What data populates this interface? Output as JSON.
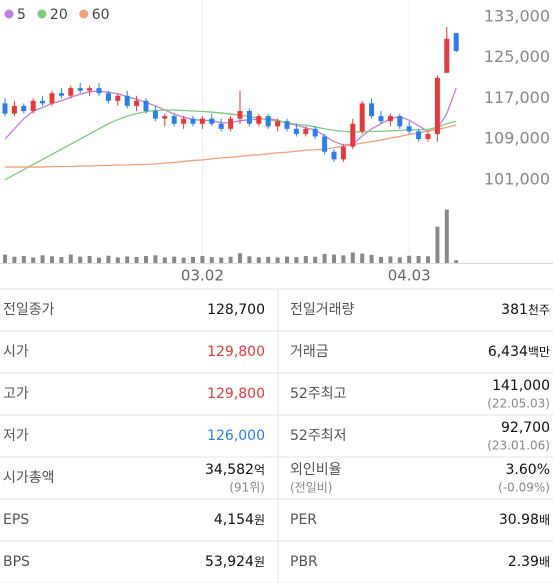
{
  "chart_data": {
    "type": "candlestick",
    "categories": [
      null,
      null,
      null,
      null,
      null,
      null,
      null,
      null,
      null,
      null,
      null,
      null,
      null,
      null,
      null,
      null,
      null,
      null,
      null,
      null,
      null,
      "03.02",
      null,
      null,
      null,
      null,
      null,
      null,
      null,
      null,
      null,
      null,
      null,
      null,
      null,
      null,
      null,
      null,
      null,
      null,
      null,
      null,
      null,
      "04.03",
      null,
      null,
      null,
      null,
      null
    ],
    "open": [
      116000,
      114000,
      115500,
      114500,
      116500,
      116000,
      118000,
      117500,
      119000,
      118500,
      119000,
      118000,
      116500,
      117500,
      115500,
      116500,
      114500,
      113000,
      113500,
      112000,
      113000,
      112000,
      113000,
      112000,
      111000,
      113000,
      114500,
      112000,
      113500,
      111500,
      112500,
      111000,
      110000,
      111000,
      109500,
      106500,
      105000,
      107500,
      110500,
      116000,
      113500,
      112500,
      113500,
      111500,
      110500,
      109000,
      110000,
      122000,
      129800
    ],
    "high": [
      117000,
      116500,
      116000,
      117000,
      117500,
      118500,
      119000,
      119500,
      120000,
      119500,
      120000,
      118500,
      118000,
      118500,
      117500,
      117000,
      115500,
      114000,
      114000,
      113500,
      113500,
      113500,
      114000,
      113000,
      113500,
      118500,
      115000,
      114000,
      114000,
      113000,
      113000,
      112000,
      111500,
      111500,
      110000,
      107000,
      108000,
      113000,
      116500,
      117000,
      114500,
      114000,
      114000,
      112500,
      111000,
      110500,
      121500,
      131000,
      129800
    ],
    "low": [
      113500,
      113500,
      114000,
      114000,
      115500,
      115500,
      117000,
      117000,
      118000,
      117500,
      117500,
      116000,
      115500,
      115000,
      114500,
      114000,
      112500,
      111500,
      111500,
      111000,
      111500,
      111000,
      111500,
      110500,
      110500,
      112000,
      111500,
      111500,
      111000,
      110500,
      110500,
      109500,
      109500,
      109000,
      106000,
      104500,
      104500,
      107000,
      110000,
      113000,
      112000,
      111500,
      111000,
      110000,
      108500,
      108500,
      108500,
      122000,
      126000
    ],
    "close": [
      114000,
      115500,
      114500,
      116500,
      116000,
      118000,
      117500,
      119000,
      118500,
      119000,
      118000,
      116500,
      117500,
      115500,
      116500,
      114500,
      113000,
      113500,
      112000,
      113000,
      112000,
      113000,
      112000,
      111000,
      113000,
      114500,
      112000,
      113500,
      111500,
      112500,
      111000,
      110000,
      111000,
      109500,
      106500,
      105000,
      107500,
      112000,
      116000,
      113500,
      112500,
      113500,
      111500,
      110500,
      109000,
      110000,
      121000,
      128700,
      126300
    ],
    "volume": [
      60000,
      45000,
      50000,
      40000,
      55000,
      48000,
      42000,
      60000,
      45000,
      50000,
      38000,
      52000,
      40000,
      47000,
      43000,
      50000,
      55000,
      40000,
      46000,
      38000,
      44000,
      50000,
      42000,
      39000,
      45000,
      70000,
      48000,
      41000,
      44000,
      40000,
      46000,
      42000,
      50000,
      45000,
      65000,
      60000,
      55000,
      75000,
      68000,
      58000,
      44000,
      47000,
      40000,
      52000,
      50000,
      48000,
      260000,
      381000,
      20000
    ],
    "up_color": "#e8383d",
    "down_color": "#2b7de9",
    "moving_averages": [
      {
        "name": "5",
        "color": "#c07ee0",
        "values": [
          109000,
          111000,
          113000,
          114500,
          115200,
          116000,
          116500,
          117200,
          117800,
          118300,
          118400,
          118200,
          117900,
          117300,
          116800,
          116200,
          115500,
          114700,
          113900,
          113300,
          112800,
          112700,
          112600,
          112200,
          112200,
          112600,
          112800,
          112900,
          113000,
          112700,
          112100,
          111700,
          111200,
          110800,
          109600,
          108500,
          107800,
          108000,
          109600,
          111000,
          112000,
          113000,
          113400,
          112700,
          111600,
          110500,
          111000,
          114000,
          119000
        ]
      },
      {
        "name": "20",
        "color": "#7ccc7c",
        "values": [
          101000,
          102000,
          103000,
          104000,
          105000,
          106000,
          107000,
          108000,
          109000,
          110000,
          111000,
          112000,
          112800,
          113500,
          114000,
          114400,
          114600,
          114700,
          114700,
          114600,
          114500,
          114400,
          114300,
          114100,
          113900,
          113700,
          113400,
          113100,
          112800,
          112500,
          112200,
          111900,
          111700,
          111400,
          111000,
          110700,
          110500,
          110400,
          110400,
          110500,
          110500,
          110600,
          110700,
          110800,
          110800,
          110900,
          111300,
          112000,
          112500
        ]
      },
      {
        "name": "60",
        "color": "#f2a07a",
        "values": [
          103500,
          103500,
          103500,
          103500,
          103500,
          103600,
          103600,
          103600,
          103700,
          103700,
          103800,
          103800,
          103900,
          103900,
          104000,
          104000,
          104100,
          104300,
          104400,
          104600,
          104800,
          104900,
          105100,
          105300,
          105400,
          105600,
          105800,
          105900,
          106100,
          106300,
          106400,
          106600,
          106800,
          106900,
          107000,
          107300,
          107600,
          107900,
          108200,
          108500,
          108800,
          109200,
          109500,
          109900,
          110200,
          110600,
          110900,
          111300,
          111800
        ]
      }
    ],
    "ylim": [
      98600,
      136300
    ],
    "volume_lim": [
      0,
      450000
    ],
    "yticks": [
      {
        "value": 133000,
        "label": "133,000"
      },
      {
        "value": 125000,
        "label": "125,000"
      },
      {
        "value": 117000,
        "label": "117,000"
      },
      {
        "value": 109000,
        "label": "109,000"
      },
      {
        "value": 101000,
        "label": "101,000"
      }
    ]
  },
  "table": {
    "rows": [
      [
        {
          "label": "전일종가",
          "value": "128,700"
        },
        {
          "label": "전일거래량",
          "value": "381",
          "unit": "천주"
        }
      ],
      [
        {
          "label": "시가",
          "value": "129,800",
          "color": "#e8383d"
        },
        {
          "label": "거래금",
          "value": "6,434",
          "unit": "백만"
        }
      ],
      [
        {
          "label": "고가",
          "value": "129,800",
          "color": "#e8383d"
        },
        {
          "label": "52주최고",
          "value": "141,000",
          "sub": "(22.05.03)"
        }
      ],
      [
        {
          "label": "저가",
          "value": "126,000",
          "color": "#2b7de9"
        },
        {
          "label": "52주최저",
          "value": "92,700",
          "sub": "(23.01.06)"
        }
      ],
      [
        {
          "label": "시가총액",
          "value": "34,582",
          "unit": "억",
          "sub": "(91위)"
        },
        {
          "label": "외인비율",
          "label_sub": "(전일비)",
          "value": "3.60%",
          "sub": "(-0.09%)"
        }
      ],
      [
        {
          "label": "EPS",
          "value": "4,154",
          "unit": "원"
        },
        {
          "label": "PER",
          "value": "30.98",
          "unit": "배"
        }
      ],
      [
        {
          "label": "BPS",
          "value": "53,924",
          "unit": "원"
        },
        {
          "label": "PBR",
          "value": "2.39",
          "unit": "배"
        }
      ]
    ]
  }
}
